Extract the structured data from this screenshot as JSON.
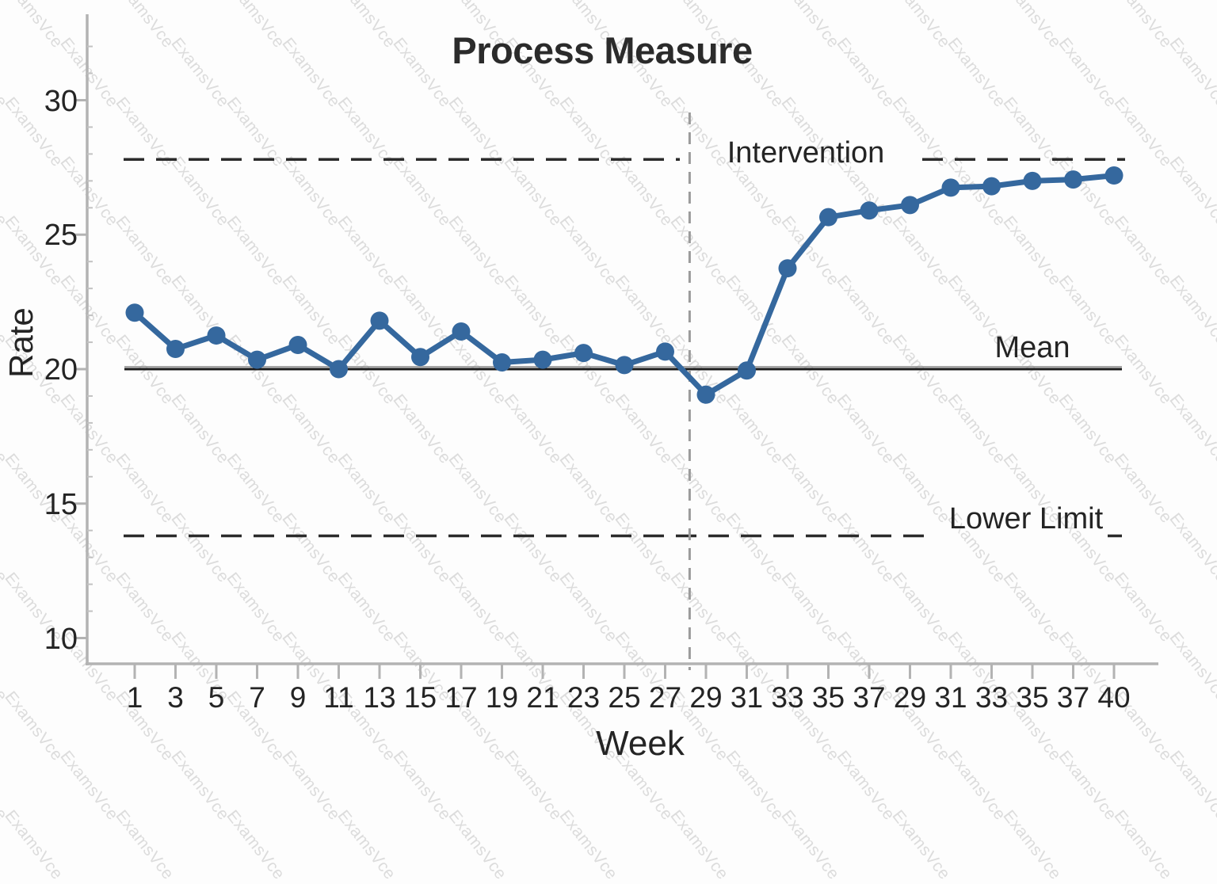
{
  "watermark": {
    "text": "ExamsVce"
  },
  "chart_data": {
    "type": "line",
    "title": "Process Measure",
    "xlabel": "Week",
    "ylabel": "Rate",
    "x_tick_labels": [
      "1",
      "3",
      "5",
      "7",
      "9",
      "11",
      "13",
      "15",
      "17",
      "19",
      "21",
      "23",
      "25",
      "27",
      "29",
      "31",
      "33",
      "35",
      "37",
      "29",
      "31",
      "33",
      "35",
      "37",
      "40"
    ],
    "y_ticks": [
      10,
      15,
      20,
      25,
      30
    ],
    "ylim": [
      9,
      33
    ],
    "grid": "off",
    "series": [
      {
        "name": "Process Measure Rate",
        "color": "#35689E",
        "values": [
          22.1,
          20.75,
          21.25,
          20.35,
          20.9,
          20.0,
          21.8,
          20.45,
          21.4,
          20.25,
          20.35,
          20.6,
          20.15,
          20.65,
          19.05,
          19.95,
          23.75,
          25.65,
          25.9,
          26.1,
          26.75,
          26.8,
          27.0,
          27.05,
          27.2
        ]
      }
    ],
    "reference_lines": {
      "mean": {
        "label": "Mean",
        "value": 20,
        "style": "solid",
        "color": "#1b1b1b"
      },
      "upper_limit": {
        "label": "",
        "value": 27.8,
        "style": "dashed",
        "color": "#2b2b2b"
      },
      "lower_limit": {
        "label": "Lower Limit",
        "value": 13.8,
        "style": "dashed",
        "color": "#2b2b2b"
      },
      "intervention": {
        "label": "Intervention",
        "orientation": "vertical",
        "between_ticks": [
          "27",
          "29"
        ],
        "style": "dashed",
        "color": "#9b9b9b"
      }
    }
  }
}
